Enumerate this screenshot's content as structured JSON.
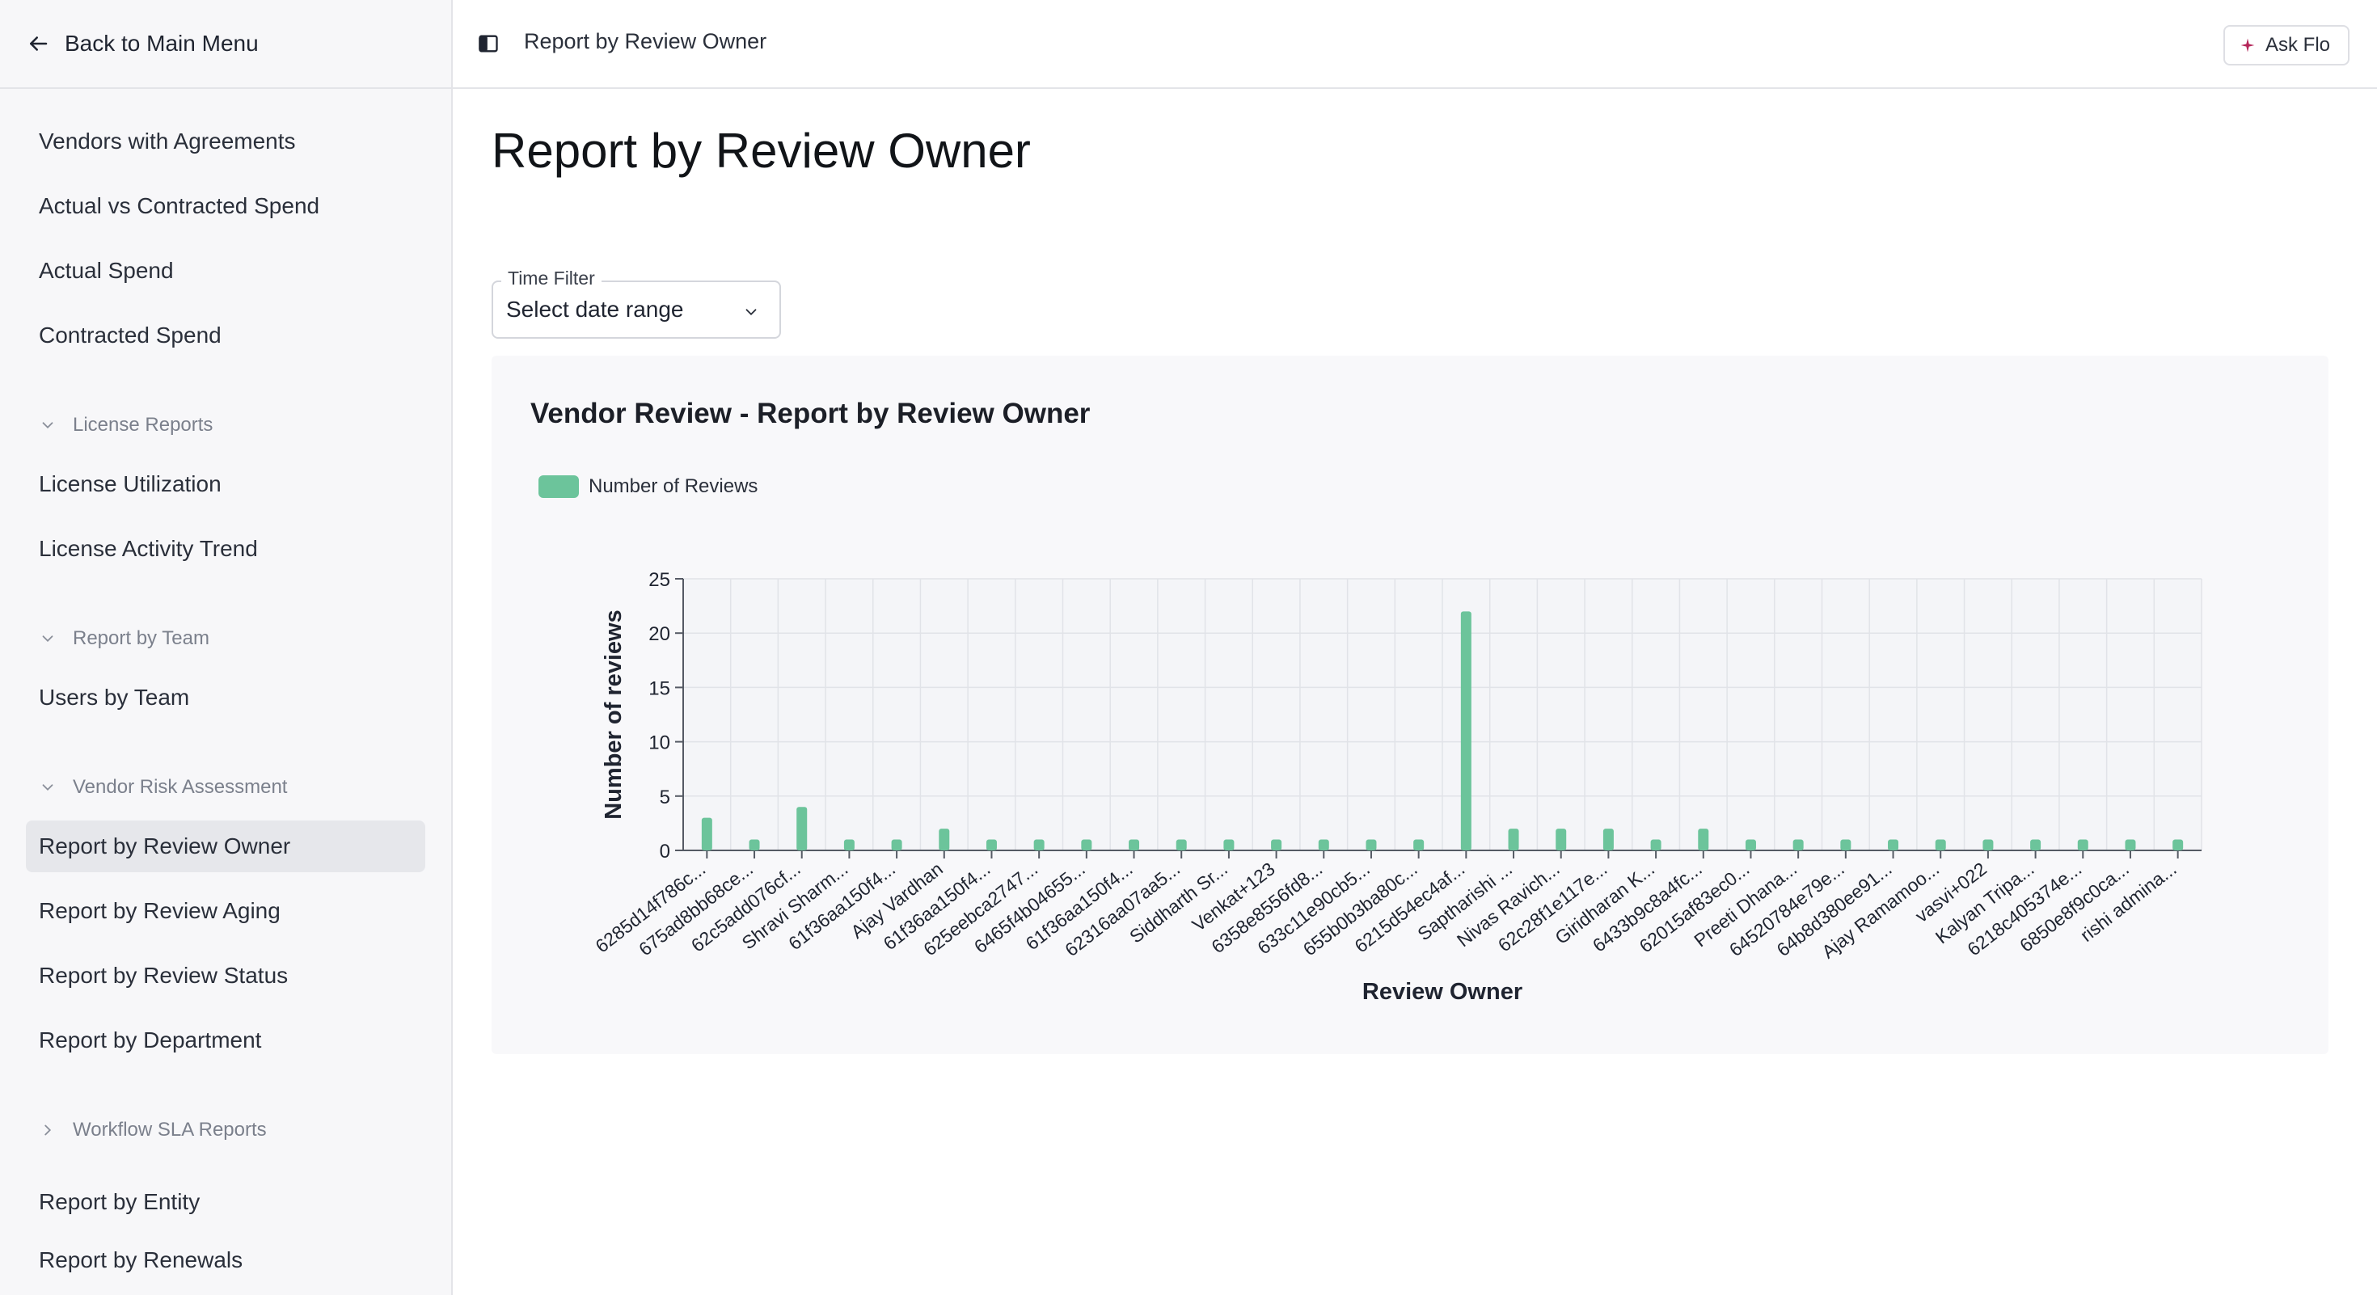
{
  "sidebar": {
    "back_label": "Back to Main Menu",
    "items_top": [
      "Vendors with Agreements",
      "Actual vs Contracted Spend",
      "Actual Spend",
      "Contracted Spend"
    ],
    "section_license": "License Reports",
    "items_license": [
      "License Utilization",
      "License Activity Trend"
    ],
    "section_team": "Report by Team",
    "items_team": [
      "Users by Team"
    ],
    "section_risk": "Vendor Risk Assessment",
    "items_risk": [
      "Report by Review Owner",
      "Report by Review Aging",
      "Report by Review Status",
      "Report by Department"
    ],
    "section_sla": "Workflow SLA Reports",
    "items_sla": [
      "Report by Entity",
      "Report by Renewals"
    ]
  },
  "topbar": {
    "breadcrumb": "Report by Review Owner",
    "ask_label": "Ask Flo"
  },
  "page": {
    "title": "Report by Review Owner",
    "filter_label": "Time Filter",
    "filter_value": "Select date range"
  },
  "colors": {
    "bar": "#6cc49b",
    "accent": "#b5275a"
  },
  "chart_data": {
    "type": "bar",
    "title": "Vendor Review - Report by Review Owner",
    "xlabel": "Review Owner",
    "ylabel": "Number of reviews",
    "ylim": [
      0,
      25
    ],
    "yticks": [
      0,
      5,
      10,
      15,
      20,
      25
    ],
    "grid": true,
    "legend_position": "top-left",
    "series": [
      {
        "name": "Number of Reviews"
      }
    ],
    "categories": [
      "6285d14f786c...",
      "675ad8bb68ce...",
      "62c5add076cf...",
      "Shravi Sharm...",
      "61f36aa150f4...",
      "Ajay Vardhan",
      "61f36aa150f4...",
      "625eebca2747...",
      "6465f4b04655...",
      "61f36aa150f4...",
      "62316aa07aa5...",
      "Siddharth Sr...",
      "Venkat+123",
      "6358e8556fd8...",
      "633c11e90cb5...",
      "655b0b3ba80c...",
      "6215d54ec4af...",
      "Saptharishi ...",
      "Nivas Ravich...",
      "62c28f1e117e...",
      "Giridharan K...",
      "6433b9c8a4fc...",
      "62015af83ec0...",
      "Preeti Dhana...",
      "64520784e79e...",
      "64b8d380ee91...",
      "Ajay Ramamoo...",
      "vasvi+022",
      "Kalyan Tripa...",
      "6218c405374e...",
      "6850e8f9c0ca...",
      "rishi admina..."
    ],
    "values": [
      3,
      1,
      4,
      1,
      1,
      2,
      1,
      1,
      1,
      1,
      1,
      1,
      1,
      1,
      1,
      1,
      22,
      2,
      2,
      2,
      1,
      2,
      1,
      1,
      1,
      1,
      1,
      1,
      1,
      1,
      1,
      1
    ]
  }
}
